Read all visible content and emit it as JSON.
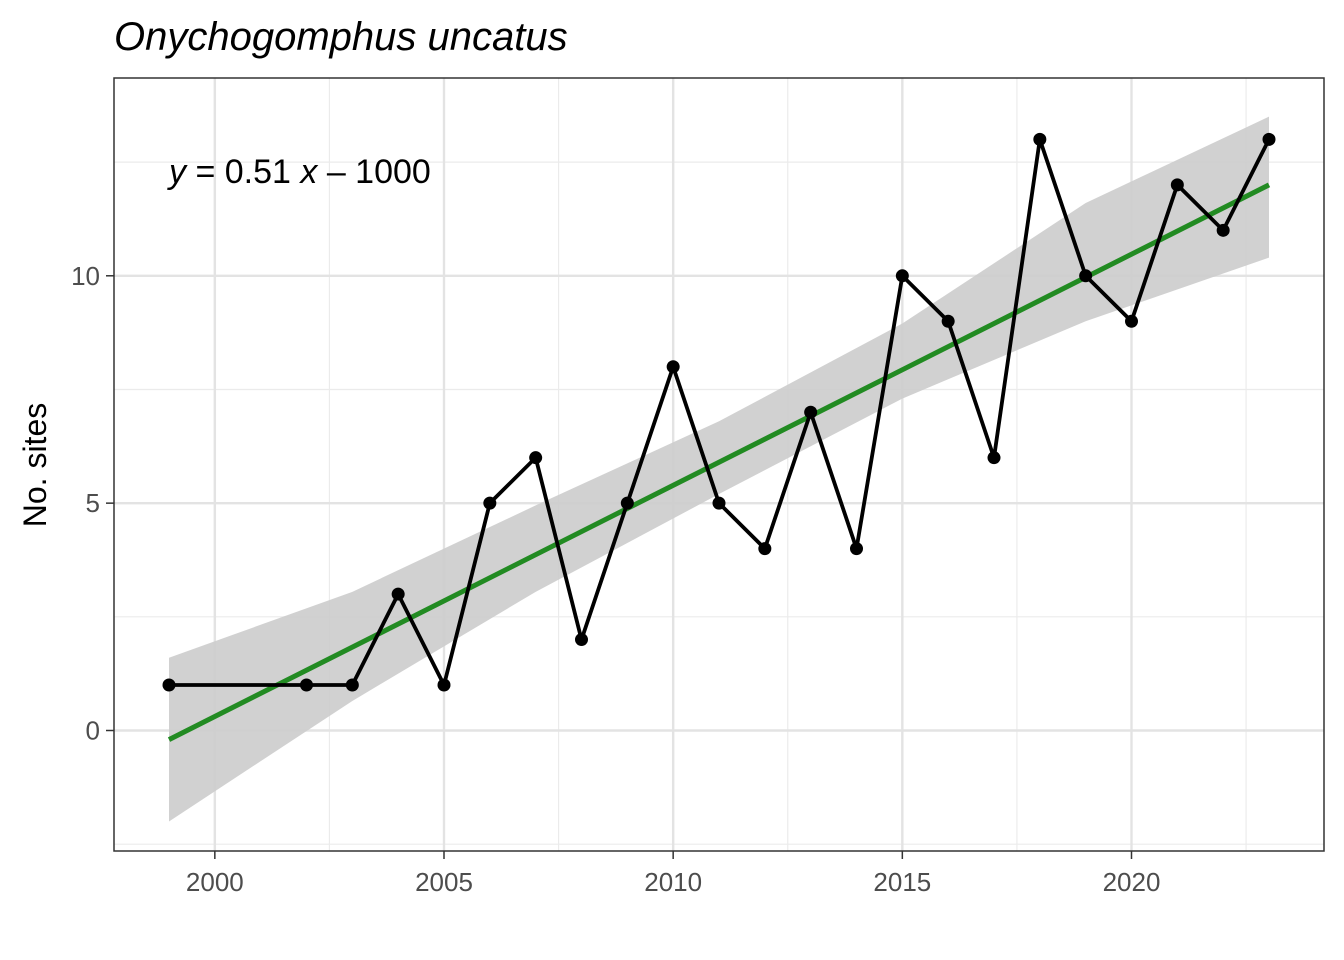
{
  "chart_data": {
    "type": "line",
    "title": "Onychogomphus uncatus",
    "xlabel": "",
    "ylabel": "No. sites",
    "xlim": [
      1997.8,
      2024.2
    ],
    "ylim": [
      -2.65,
      14.35
    ],
    "x_ticks": [
      2000,
      2005,
      2010,
      2015,
      2020
    ],
    "y_ticks": [
      0,
      5,
      10
    ],
    "grid": true,
    "series": [
      {
        "x": [
          1999,
          2002,
          2003,
          2004,
          2005,
          2006,
          2007,
          2008,
          2009,
          2010,
          2011,
          2012,
          2013,
          2014,
          2015,
          2016,
          2017,
          2018,
          2019,
          2020,
          2021,
          2022,
          2023
        ],
        "values": [
          1,
          1,
          1,
          3,
          1,
          5,
          6,
          2,
          5,
          8,
          5,
          4,
          7,
          4,
          10,
          9,
          6,
          13,
          10,
          9,
          12,
          11,
          13
        ],
        "color": "#000000"
      }
    ],
    "trend": {
      "x": [
        1999,
        2023
      ],
      "y": [
        -0.2,
        12.0
      ],
      "color": "#228B22"
    },
    "confidence_band": {
      "x": [
        1999,
        2003,
        2007,
        2011,
        2015,
        2019,
        2023
      ],
      "lower": [
        -2.0,
        0.65,
        3.05,
        5.2,
        7.3,
        9.0,
        10.4
      ],
      "upper": [
        1.6,
        3.05,
        4.95,
        6.8,
        8.95,
        11.6,
        13.5
      ],
      "color": "#cccccc"
    },
    "annotations": [
      {
        "text_y": "y",
        "text_rest": " = 0.51 ",
        "text_x": "x",
        "text_tail": " – 1000",
        "at_x": 1999,
        "at_y": 12.3
      }
    ]
  }
}
